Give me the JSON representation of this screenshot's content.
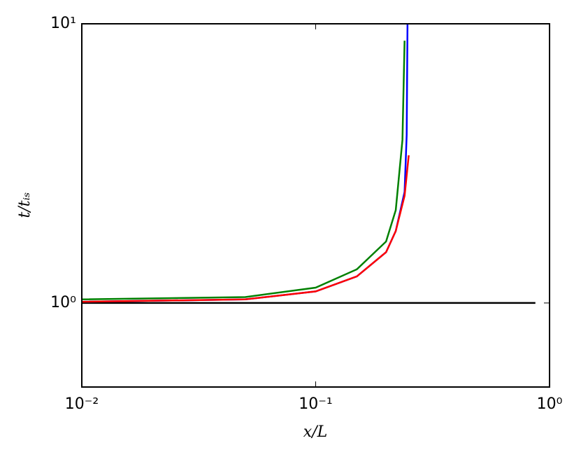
{
  "chart_data": {
    "type": "line",
    "xlabel": "x/L",
    "ylabel": "t/tᵢₛ",
    "xscale": "log",
    "yscale": "log",
    "xlim": [
      0.01,
      1
    ],
    "ylim": [
      0.5,
      10
    ],
    "xticks": [
      {
        "value": 0.01,
        "label": "10⁻²"
      },
      {
        "value": 0.1,
        "label": "10⁻¹"
      },
      {
        "value": 1,
        "label": "10⁰"
      }
    ],
    "yticks": [
      {
        "value": 1,
        "label": "10⁰"
      },
      {
        "value": 10,
        "label": "10¹"
      }
    ],
    "series": [
      {
        "color": "#000000",
        "x": [
          0.01,
          0.87
        ],
        "values": [
          1,
          1
        ]
      },
      {
        "color": "#0000ff",
        "x": [
          0.01,
          0.05,
          0.1,
          0.15,
          0.2,
          0.22,
          0.24,
          0.245,
          0.247
        ],
        "values": [
          1.01,
          1.03,
          1.1,
          1.245,
          1.52,
          1.81,
          2.5,
          4,
          10
        ]
      },
      {
        "color": "#ff0000",
        "x": [
          0.01,
          0.05,
          0.1,
          0.15,
          0.2,
          0.22,
          0.24,
          0.25
        ],
        "values": [
          1.01,
          1.03,
          1.1,
          1.245,
          1.52,
          1.81,
          2.42,
          3.38
        ]
      },
      {
        "color": "#008000",
        "x": [
          0.01,
          0.05,
          0.1,
          0.15,
          0.2,
          0.22,
          0.235,
          0.24
        ],
        "values": [
          1.03,
          1.05,
          1.135,
          1.32,
          1.66,
          2.15,
          3.84,
          8.7
        ]
      }
    ]
  }
}
